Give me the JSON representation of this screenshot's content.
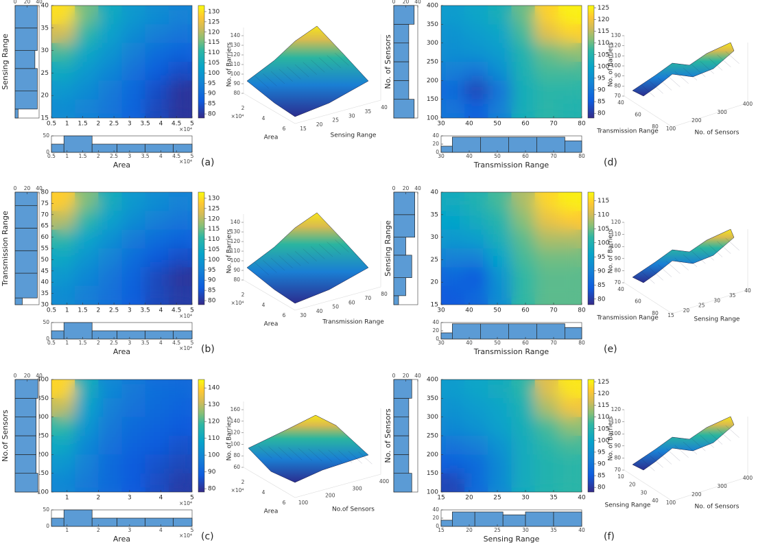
{
  "panels": [
    {
      "label": "(a)",
      "x_label": "Area",
      "y_label": "Sensing Range",
      "x_exponent": "×10⁴",
      "heatmap": {
        "xlim": [
          0.5,
          5
        ],
        "ylim": [
          15,
          40
        ],
        "xticks": [
          0.5,
          1,
          1.5,
          2,
          2.5,
          3,
          3.5,
          4,
          4.5,
          5
        ],
        "yticks": [
          15,
          20,
          25,
          30,
          35,
          40
        ],
        "values": [
          [
            130,
            115,
            105,
            100,
            97,
            95
          ],
          [
            122,
            110,
            102,
            97,
            94,
            92
          ],
          [
            112,
            104,
            99,
            94,
            90,
            88
          ],
          [
            105,
            100,
            96,
            91,
            87,
            84
          ],
          [
            100,
            97,
            93,
            89,
            84,
            80
          ],
          [
            97,
            95,
            92,
            88,
            83,
            80
          ]
        ],
        "clim": [
          78,
          133
        ],
        "cticks": [
          80,
          85,
          90,
          95,
          100,
          105,
          110,
          115,
          120,
          125,
          130
        ]
      },
      "y_hist": {
        "bins": [
          15,
          17,
          21,
          26,
          30,
          35,
          40
        ],
        "counts": [
          5,
          37,
          37,
          33,
          37,
          37
        ],
        "xlim": [
          0,
          40
        ],
        "xticks": [
          0,
          20,
          40
        ]
      },
      "x_hist": {
        "bins": [
          0.5,
          0.9,
          1.8,
          2.6,
          3.5,
          4.4,
          5
        ],
        "counts": [
          25,
          50,
          25,
          25,
          25,
          25
        ],
        "ylim": [
          0,
          50
        ],
        "yticks": [
          0,
          50
        ]
      },
      "surface": {
        "z_label": "No. of Barriers",
        "zticks": [
          80,
          90,
          100,
          110,
          120,
          130,
          140
        ],
        "xticks": [
          2,
          4,
          6
        ],
        "yticks": [
          15,
          20,
          25,
          30,
          35,
          40
        ]
      }
    },
    {
      "label": "(b)",
      "x_label": "Area",
      "y_label": "Transmission Range",
      "x_exponent": "×10⁴",
      "heatmap": {
        "xlim": [
          0.5,
          5
        ],
        "ylim": [
          30,
          80
        ],
        "xticks": [
          0.5,
          1,
          1.5,
          2,
          2.5,
          3,
          3.5,
          4,
          4.5,
          5
        ],
        "yticks": [
          30,
          35,
          40,
          45,
          50,
          55,
          60,
          65,
          70,
          75,
          80
        ],
        "values": [
          [
            128,
            116,
            106,
            100,
            97,
            95
          ],
          [
            120,
            110,
            102,
            97,
            94,
            92
          ],
          [
            110,
            103,
            98,
            93,
            90,
            88
          ],
          [
            104,
            99,
            95,
            90,
            86,
            84
          ],
          [
            100,
            96,
            92,
            88,
            83,
            80
          ],
          [
            97,
            94,
            91,
            87,
            83,
            81
          ]
        ],
        "clim": [
          78,
          133
        ],
        "cticks": [
          80,
          85,
          90,
          95,
          100,
          105,
          110,
          115,
          120,
          125,
          130
        ]
      },
      "y_hist": {
        "bins": [
          30,
          33,
          44,
          54,
          64,
          74,
          80
        ],
        "counts": [
          12,
          37,
          37,
          37,
          37,
          37
        ],
        "xlim": [
          0,
          40
        ],
        "xticks": [
          0,
          20,
          40
        ]
      },
      "x_hist": {
        "bins": [
          0.5,
          0.9,
          1.8,
          2.6,
          3.5,
          4.4,
          5
        ],
        "counts": [
          25,
          50,
          25,
          25,
          25,
          25
        ],
        "ylim": [
          0,
          50
        ],
        "yticks": [
          0,
          50
        ]
      },
      "surface": {
        "z_label": "No. of Barriers",
        "zticks": [
          80,
          90,
          100,
          110,
          120,
          130,
          140
        ],
        "xticks": [
          2,
          4,
          6
        ],
        "yticks": [
          30,
          40,
          50,
          60,
          70,
          80
        ]
      }
    },
    {
      "label": "(c)",
      "x_label": "Area",
      "y_label": "No.of Sensors",
      "x_exponent": "×10⁴",
      "heatmap": {
        "xlim": [
          0.5,
          5
        ],
        "ylim": [
          100,
          400
        ],
        "xticks": [
          1,
          2,
          3,
          4,
          5
        ],
        "yticks": [
          100,
          150,
          200,
          250,
          300,
          350,
          400
        ],
        "values": [
          [
            140,
            112,
            100,
            96,
            93,
            92
          ],
          [
            130,
            108,
            98,
            94,
            92,
            90
          ],
          [
            118,
            104,
            96,
            92,
            90,
            88
          ],
          [
            110,
            100,
            94,
            90,
            88,
            86
          ],
          [
            104,
            98,
            92,
            88,
            86,
            84
          ],
          [
            100,
            96,
            92,
            88,
            85,
            82
          ]
        ],
        "clim": [
          78,
          145
        ],
        "cticks": [
          80,
          90,
          100,
          110,
          120,
          130,
          140
        ]
      },
      "y_hist": {
        "bins": [
          100,
          150,
          200,
          250,
          300,
          350,
          400
        ],
        "counts": [
          38,
          35,
          35,
          35,
          35,
          38
        ],
        "xlim": [
          0,
          40
        ],
        "xticks": [
          0,
          20,
          40
        ]
      },
      "x_hist": {
        "bins": [
          0.5,
          0.9,
          1.8,
          2.6,
          3.5,
          4.4,
          5
        ],
        "counts": [
          25,
          50,
          25,
          25,
          25,
          25
        ],
        "ylim": [
          0,
          50
        ],
        "yticks": [
          0,
          50
        ]
      },
      "surface": {
        "z_label": "No. of Barriers",
        "zticks": [
          60,
          80,
          100,
          120,
          140,
          160
        ],
        "xticks": [
          2,
          4,
          6
        ],
        "yticks": [
          100,
          200,
          300,
          400
        ]
      }
    },
    {
      "label": "(d)",
      "x_label": "Transmission Range",
      "y_label": "No. of Sensors",
      "heatmap": {
        "xlim": [
          30,
          80
        ],
        "ylim": [
          100,
          400
        ],
        "xticks": [
          30,
          40,
          50,
          60,
          70,
          80
        ],
        "yticks": [
          100,
          150,
          200,
          250,
          300,
          350,
          400
        ],
        "values": [
          [
            98,
            100,
            103,
            110,
            122,
            125
          ],
          [
            96,
            98,
            100,
            108,
            118,
            122
          ],
          [
            95,
            96,
            98,
            105,
            110,
            112
          ],
          [
            92,
            90,
            95,
            104,
            108,
            108
          ],
          [
            88,
            82,
            90,
            103,
            106,
            106
          ],
          [
            90,
            86,
            92,
            103,
            106,
            105
          ]
        ],
        "clim": [
          78,
          126
        ],
        "cticks": [
          80,
          85,
          90,
          95,
          100,
          105,
          110,
          115,
          120,
          125
        ]
      },
      "y_hist": {
        "bins": [
          100,
          150,
          200,
          250,
          300,
          350,
          400
        ],
        "counts": [
          34,
          25,
          25,
          25,
          25,
          34
        ],
        "xlim": [
          0,
          40
        ],
        "xticks": [
          0,
          20,
          40
        ]
      },
      "x_hist": {
        "bins": [
          30,
          34,
          44,
          54,
          64,
          74,
          80
        ],
        "counts": [
          15,
          37,
          37,
          37,
          37,
          28
        ],
        "ylim": [
          0,
          40
        ],
        "yticks": [
          0,
          20,
          40
        ]
      },
      "surface": {
        "z_label": "No. of Barriers",
        "zticks": [
          70,
          80,
          90,
          100,
          110,
          120,
          130
        ],
        "xticks": [
          40,
          60,
          80
        ],
        "yticks": [
          100,
          200,
          300,
          400
        ]
      }
    },
    {
      "label": "(e)",
      "x_label": "Transmission Range",
      "y_label": "Sensing Range",
      "heatmap": {
        "xlim": [
          30,
          80
        ],
        "ylim": [
          15,
          40
        ],
        "xticks": [
          30,
          40,
          50,
          60,
          70,
          80
        ],
        "yticks": [
          15,
          20,
          25,
          30,
          35,
          40
        ],
        "values": [
          [
            98,
            100,
            103,
            108,
            115,
            117
          ],
          [
            96,
            98,
            101,
            106,
            112,
            114
          ],
          [
            94,
            95,
            99,
            104,
            108,
            108
          ],
          [
            90,
            90,
            96,
            103,
            105,
            105
          ],
          [
            86,
            84,
            93,
            102,
            104,
            104
          ],
          [
            84,
            86,
            92,
            102,
            104,
            104
          ]
        ],
        "clim": [
          78,
          118
        ],
        "cticks": [
          80,
          85,
          90,
          95,
          100,
          105,
          110,
          115
        ]
      },
      "y_hist": {
        "bins": [
          15,
          17,
          21,
          26,
          30,
          35,
          40
        ],
        "counts": [
          8,
          20,
          30,
          20,
          35,
          35
        ],
        "xlim": [
          0,
          40
        ],
        "xticks": [
          0,
          20,
          40
        ]
      },
      "x_hist": {
        "bins": [
          30,
          34,
          44,
          54,
          64,
          74,
          80
        ],
        "counts": [
          15,
          37,
          37,
          37,
          37,
          28
        ],
        "ylim": [
          0,
          40
        ],
        "yticks": [
          0,
          20,
          40
        ]
      },
      "surface": {
        "z_label": "No. of Barriers",
        "zticks": [
          70,
          80,
          90,
          100,
          110,
          120
        ],
        "xticks": [
          40,
          60,
          80
        ],
        "yticks": [
          15,
          20,
          25,
          30,
          35,
          40
        ]
      }
    },
    {
      "label": "(f)",
      "x_label": "Sensing Range",
      "y_label": "No. of Sensors",
      "heatmap": {
        "xlim": [
          15,
          40
        ],
        "ylim": [
          100,
          400
        ],
        "xticks": [
          15,
          20,
          25,
          30,
          35,
          40
        ],
        "yticks": [
          100,
          150,
          200,
          250,
          300,
          350,
          400
        ],
        "values": [
          [
            98,
            100,
            102,
            106,
            118,
            124
          ],
          [
            96,
            98,
            100,
            104,
            114,
            120
          ],
          [
            94,
            96,
            99,
            103,
            108,
            112
          ],
          [
            90,
            92,
            96,
            102,
            106,
            108
          ],
          [
            86,
            88,
            94,
            102,
            105,
            106
          ],
          [
            82,
            88,
            94,
            102,
            105,
            106
          ]
        ],
        "clim": [
          78,
          126
        ],
        "cticks": [
          80,
          85,
          90,
          95,
          100,
          105,
          110,
          115,
          120,
          125
        ]
      },
      "y_hist": {
        "bins": [
          100,
          150,
          200,
          250,
          300,
          350,
          400
        ],
        "counts": [
          30,
          25,
          25,
          25,
          25,
          30
        ],
        "xlim": [
          0,
          40
        ],
        "xticks": [
          0,
          20,
          40
        ]
      },
      "x_hist": {
        "bins": [
          15,
          17,
          21,
          26,
          30,
          35,
          40
        ],
        "counts": [
          15,
          35,
          35,
          28,
          35,
          35
        ],
        "ylim": [
          0,
          40
        ],
        "yticks": [
          0,
          20,
          40
        ]
      },
      "surface": {
        "z_label": "No. of Barriers",
        "zticks": [
          70,
          80,
          90,
          100,
          110,
          120
        ],
        "xticks": [
          10,
          20,
          30,
          40
        ],
        "yticks": [
          100,
          200,
          300,
          400
        ]
      }
    }
  ]
}
